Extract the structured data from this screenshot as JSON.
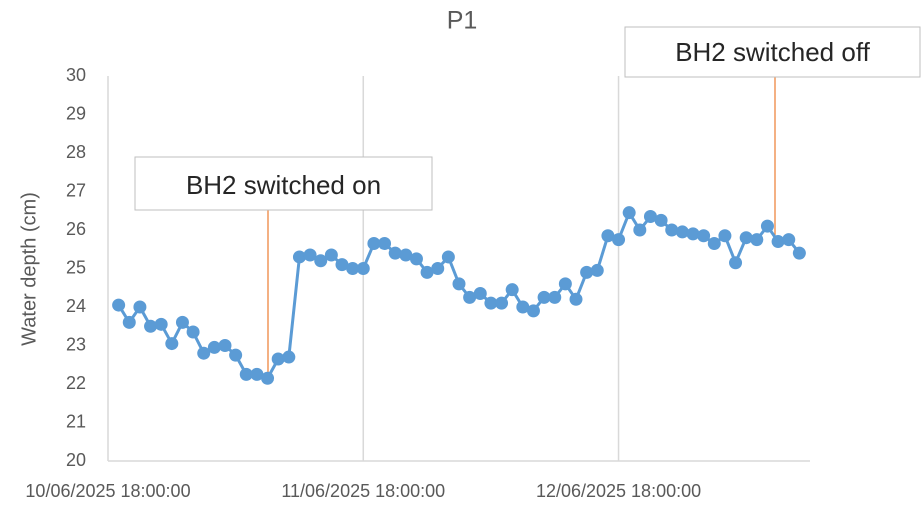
{
  "chart_data": {
    "type": "line",
    "title": "P1",
    "y_label": "Water depth (cm)",
    "x": [
      "10/06/2025 19:00:00",
      "10/06/2025 20:00:00",
      "10/06/2025 21:00:00",
      "10/06/2025 22:00:00",
      "10/06/2025 23:00:00",
      "11/06/2025 00:00:00",
      "11/06/2025 01:00:00",
      "11/06/2025 02:00:00",
      "11/06/2025 03:00:00",
      "11/06/2025 04:00:00",
      "11/06/2025 05:00:00",
      "11/06/2025 06:00:00",
      "11/06/2025 07:00:00",
      "11/06/2025 08:00:00",
      "11/06/2025 09:00:00",
      "11/06/2025 10:00:00",
      "11/06/2025 11:00:00",
      "11/06/2025 12:00:00",
      "11/06/2025 13:00:00",
      "11/06/2025 14:00:00",
      "11/06/2025 15:00:00",
      "11/06/2025 16:00:00",
      "11/06/2025 17:00:00",
      "11/06/2025 18:00:00",
      "11/06/2025 19:00:00",
      "11/06/2025 20:00:00",
      "11/06/2025 21:00:00",
      "11/06/2025 22:00:00",
      "11/06/2025 23:00:00",
      "12/06/2025 00:00:00",
      "12/06/2025 01:00:00",
      "12/06/2025 02:00:00",
      "12/06/2025 03:00:00",
      "12/06/2025 04:00:00",
      "12/06/2025 05:00:00",
      "12/06/2025 06:00:00",
      "12/06/2025 07:00:00",
      "12/06/2025 08:00:00",
      "12/06/2025 09:00:00",
      "12/06/2025 10:00:00",
      "12/06/2025 11:00:00",
      "12/06/2025 12:00:00",
      "12/06/2025 13:00:00",
      "12/06/2025 14:00:00",
      "12/06/2025 15:00:00",
      "12/06/2025 16:00:00",
      "12/06/2025 17:00:00",
      "12/06/2025 18:00:00",
      "12/06/2025 19:00:00",
      "12/06/2025 20:00:00",
      "12/06/2025 21:00:00",
      "12/06/2025 22:00:00",
      "12/06/2025 23:00:00",
      "13/06/2025 00:00:00",
      "13/06/2025 01:00:00",
      "13/06/2025 02:00:00",
      "13/06/2025 03:00:00",
      "13/06/2025 04:00:00",
      "13/06/2025 05:00:00",
      "13/06/2025 06:00:00",
      "13/06/2025 07:00:00",
      "13/06/2025 08:00:00",
      "13/06/2025 09:00:00",
      "13/06/2025 10:00:00",
      "13/06/2025 11:00:00"
    ],
    "series": [
      {
        "name": "P1",
        "color": "#5b9bd5",
        "values": [
          24.05,
          23.6,
          24.0,
          23.5,
          23.55,
          23.05,
          23.6,
          23.35,
          22.8,
          22.95,
          23.0,
          22.75,
          22.25,
          22.25,
          22.15,
          22.65,
          22.7,
          25.3,
          25.35,
          25.2,
          25.35,
          25.1,
          25.0,
          25.0,
          25.65,
          25.65,
          25.4,
          25.35,
          25.25,
          24.9,
          25.0,
          25.3,
          24.6,
          24.25,
          24.35,
          24.1,
          24.1,
          24.45,
          24.0,
          23.9,
          24.25,
          24.25,
          24.6,
          24.2,
          24.9,
          24.95,
          25.85,
          25.75,
          26.45,
          26.0,
          26.35,
          26.25,
          26.0,
          25.95,
          25.9,
          25.85,
          25.65,
          25.85,
          25.15,
          25.8,
          25.75,
          26.1,
          25.7,
          25.75,
          25.4
        ]
      }
    ],
    "xlim": [
      "10/06/2025 18:00:00",
      "13/06/2025 12:00:00"
    ],
    "xticks": [
      "10/06/2025 18:00:00",
      "11/06/2025 18:00:00",
      "12/06/2025 18:00:00"
    ],
    "ylim": [
      20,
      30
    ],
    "yticks": [
      20,
      21,
      22,
      23,
      24,
      25,
      26,
      27,
      28,
      29,
      30
    ],
    "grid": "x",
    "annotations": [
      {
        "text": "BH2 switched on",
        "color": "#ed7d31"
      },
      {
        "text": "BH2 switched off",
        "color": "#ed7d31"
      }
    ]
  }
}
